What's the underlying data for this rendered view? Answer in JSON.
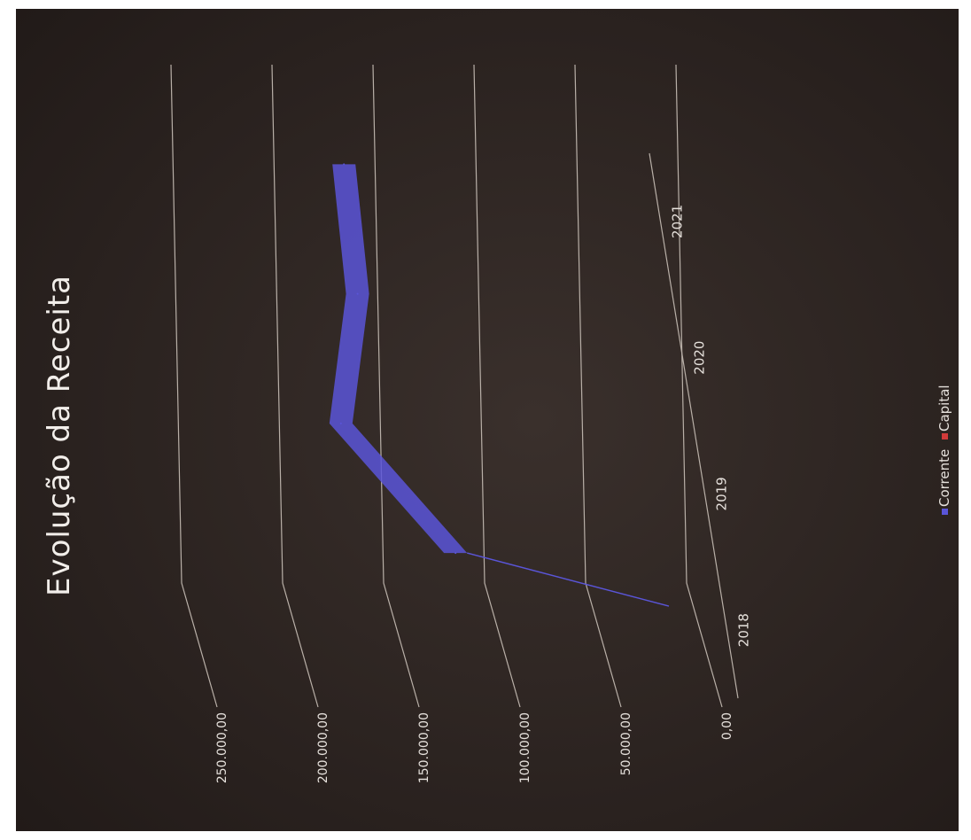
{
  "colors": {
    "background": "#2b2320",
    "gridline": "#b9b0a8",
    "corrente": "#5a55d8",
    "capital": "#d23a3a"
  },
  "chart_data": {
    "type": "area",
    "title": "Evolução da Receita",
    "categories": [
      "2018",
      "2019",
      "2020",
      "2021"
    ],
    "ytick_labels": [
      "0,00",
      "50.000,00",
      "100.000,00",
      "150.000,00",
      "200.000,00",
      "250.000,00"
    ],
    "ylim": [
      0,
      250000
    ],
    "grid": true,
    "three_d": true,
    "legend_position": "bottom",
    "series": [
      {
        "name": "Corrente",
        "values": [
          125000,
          180000,
          170000,
          175000
        ],
        "color": "#5a55d8"
      },
      {
        "name": "Capital",
        "values": [
          0,
          0,
          0,
          0
        ],
        "color": "#d23a3a"
      }
    ]
  }
}
